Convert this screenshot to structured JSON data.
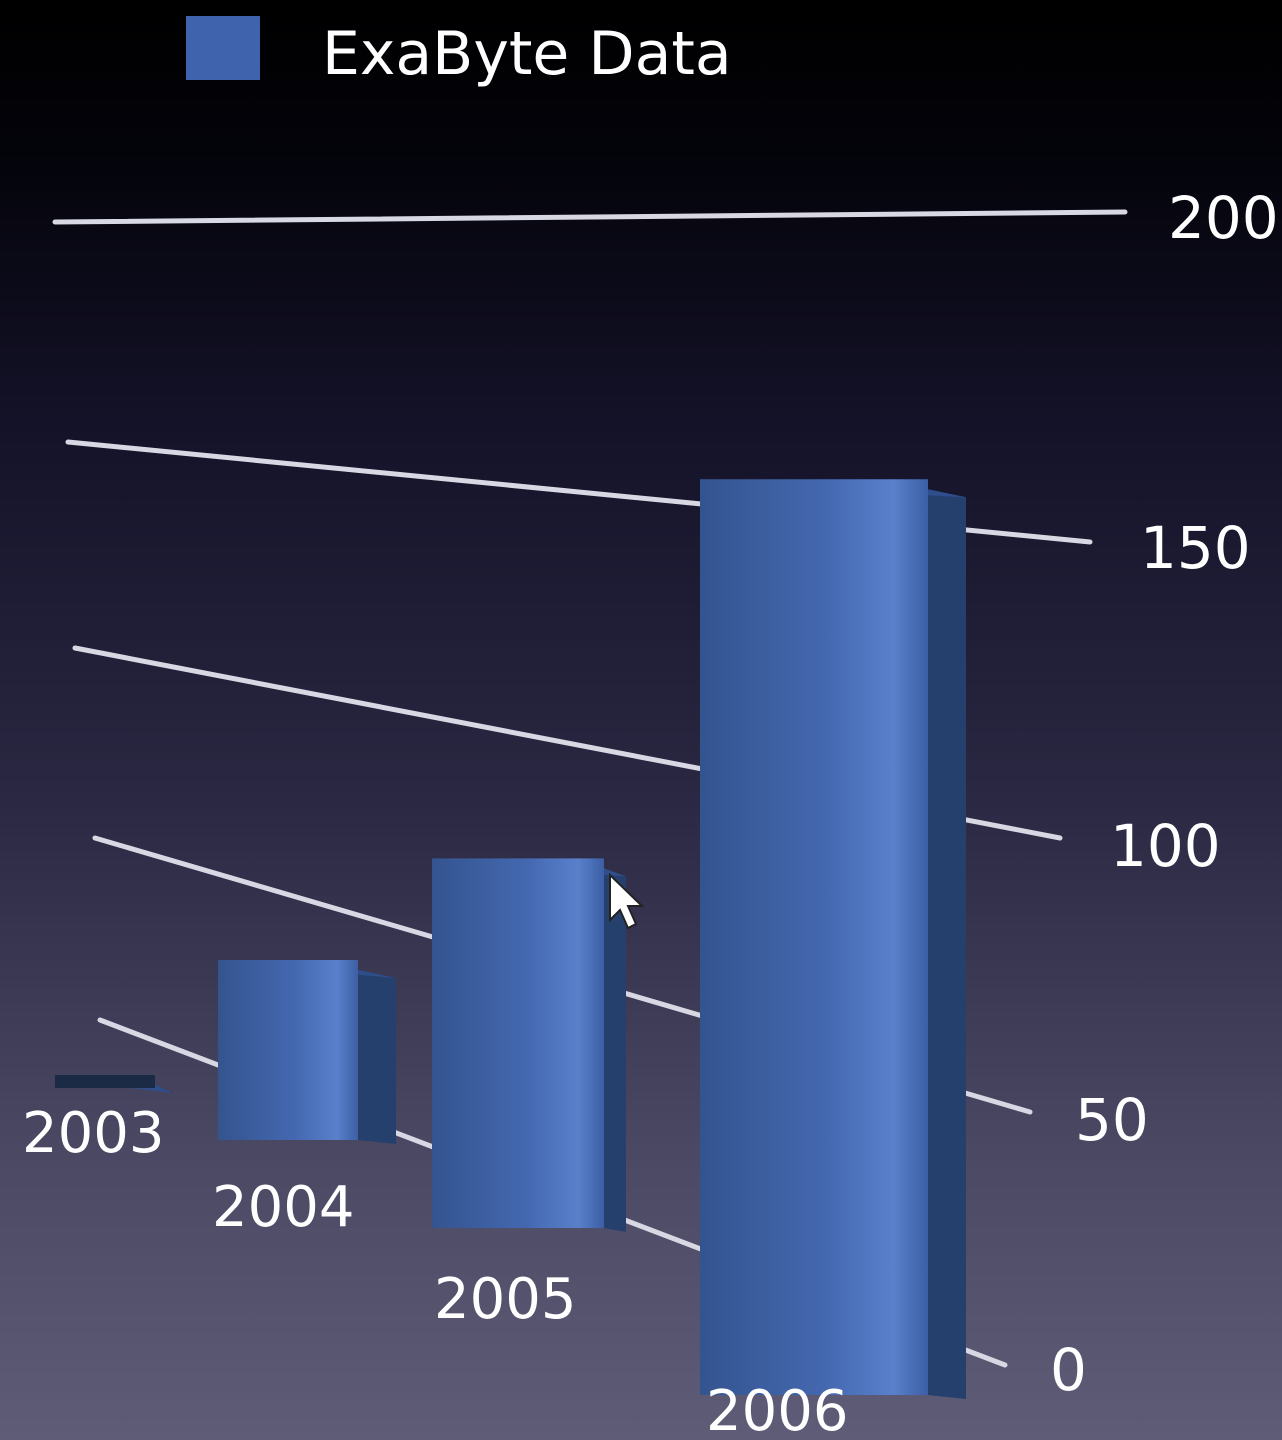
{
  "chart_data": {
    "type": "bar",
    "style": "3d",
    "categories": [
      "2003",
      "2004",
      "2005",
      "2006"
    ],
    "series": [
      {
        "name": "ExaByte Data",
        "values": [
          5,
          40,
          88,
          165
        ]
      }
    ],
    "ylim": [
      0,
      200
    ],
    "yticks": [
      "0",
      "50",
      "100",
      "150",
      "200"
    ],
    "grid": true,
    "legend_position": "top-left"
  },
  "colors": {
    "bar": "#3f63ac",
    "bar_highlight": "#5479c6",
    "bar_side": "#26406e",
    "bar_top": "#2f4f8c",
    "grid": "#d8d8e4",
    "text": "#ffffff",
    "legend_swatch": "#3f63ac"
  },
  "cursor_icon": "arrow-cursor-icon"
}
